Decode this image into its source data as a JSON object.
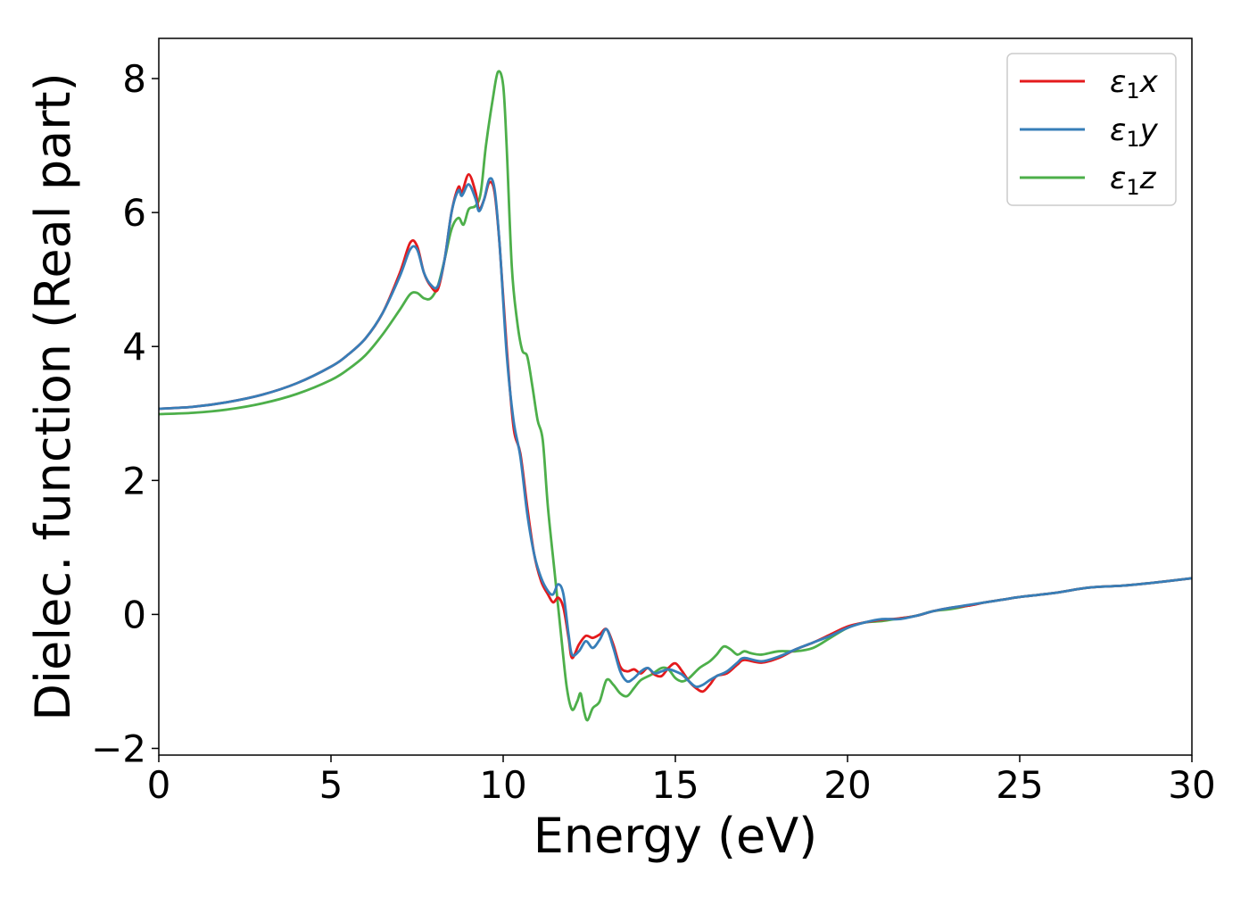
{
  "chart_data": {
    "type": "line",
    "title": "",
    "xlabel": "Energy (eV)",
    "ylabel": "Dielec. function (Real part)",
    "xlim": [
      0,
      30
    ],
    "ylim": [
      -2.1,
      8.6
    ],
    "xticks": [
      0,
      5,
      10,
      15,
      20,
      25,
      30
    ],
    "yticks": [
      -2,
      0,
      2,
      4,
      6,
      8
    ],
    "xtick_labels": [
      "0",
      "5",
      "10",
      "15",
      "20",
      "25",
      "30"
    ],
    "ytick_labels": [
      "−2",
      "0",
      "2",
      "4",
      "6",
      "8"
    ],
    "grid": false,
    "legend_position": "top-right",
    "series": [
      {
        "name": "ε1x",
        "symbol": "ε",
        "subscript": "1",
        "axis": "x",
        "color": "#e41a1c",
        "points": [
          [
            0,
            3.07
          ],
          [
            1,
            3.1
          ],
          [
            2,
            3.17
          ],
          [
            3,
            3.28
          ],
          [
            4,
            3.45
          ],
          [
            5,
            3.7
          ],
          [
            5.5,
            3.88
          ],
          [
            6,
            4.12
          ],
          [
            6.5,
            4.5
          ],
          [
            7,
            5.1
          ],
          [
            7.3,
            5.55
          ],
          [
            7.5,
            5.5
          ],
          [
            7.7,
            5.1
          ],
          [
            7.9,
            4.9
          ],
          [
            8.1,
            4.85
          ],
          [
            8.3,
            5.3
          ],
          [
            8.5,
            6.0
          ],
          [
            8.7,
            6.38
          ],
          [
            8.8,
            6.3
          ],
          [
            9.0,
            6.57
          ],
          [
            9.2,
            6.3
          ],
          [
            9.3,
            6.05
          ],
          [
            9.45,
            6.2
          ],
          [
            9.6,
            6.45
          ],
          [
            9.75,
            6.3
          ],
          [
            9.9,
            5.5
          ],
          [
            10.1,
            4.0
          ],
          [
            10.3,
            2.8
          ],
          [
            10.5,
            2.4
          ],
          [
            10.7,
            1.6
          ],
          [
            10.9,
            0.9
          ],
          [
            11.1,
            0.5
          ],
          [
            11.3,
            0.3
          ],
          [
            11.45,
            0.18
          ],
          [
            11.6,
            0.25
          ],
          [
            11.75,
            0.1
          ],
          [
            11.9,
            -0.35
          ],
          [
            12.0,
            -0.65
          ],
          [
            12.2,
            -0.45
          ],
          [
            12.4,
            -0.32
          ],
          [
            12.6,
            -0.35
          ],
          [
            12.8,
            -0.3
          ],
          [
            13.0,
            -0.22
          ],
          [
            13.2,
            -0.45
          ],
          [
            13.4,
            -0.78
          ],
          [
            13.6,
            -0.85
          ],
          [
            13.8,
            -0.82
          ],
          [
            14.0,
            -0.88
          ],
          [
            14.2,
            -0.8
          ],
          [
            14.4,
            -0.9
          ],
          [
            14.6,
            -0.92
          ],
          [
            14.8,
            -0.8
          ],
          [
            15.0,
            -0.73
          ],
          [
            15.2,
            -0.85
          ],
          [
            15.4,
            -1.0
          ],
          [
            15.6,
            -1.1
          ],
          [
            15.8,
            -1.15
          ],
          [
            16.0,
            -1.05
          ],
          [
            16.2,
            -0.92
          ],
          [
            16.5,
            -0.88
          ],
          [
            16.8,
            -0.75
          ],
          [
            17.0,
            -0.68
          ],
          [
            17.5,
            -0.72
          ],
          [
            18.0,
            -0.65
          ],
          [
            18.5,
            -0.52
          ],
          [
            19.0,
            -0.42
          ],
          [
            19.5,
            -0.3
          ],
          [
            20,
            -0.18
          ],
          [
            20.5,
            -0.12
          ],
          [
            21,
            -0.08
          ],
          [
            21.5,
            -0.06
          ],
          [
            22,
            -0.02
          ],
          [
            22.5,
            0.05
          ],
          [
            23,
            0.1
          ],
          [
            23.5,
            0.13
          ],
          [
            24,
            0.18
          ],
          [
            24.5,
            0.22
          ],
          [
            25,
            0.26
          ],
          [
            26,
            0.32
          ],
          [
            27,
            0.4
          ],
          [
            28,
            0.43
          ],
          [
            29,
            0.48
          ],
          [
            30,
            0.54
          ]
        ]
      },
      {
        "name": "ε1y",
        "symbol": "ε",
        "subscript": "1",
        "axis": "y",
        "color": "#377eb8",
        "points": [
          [
            0,
            3.07
          ],
          [
            1,
            3.1
          ],
          [
            2,
            3.17
          ],
          [
            3,
            3.28
          ],
          [
            4,
            3.45
          ],
          [
            5,
            3.7
          ],
          [
            5.5,
            3.88
          ],
          [
            6,
            4.12
          ],
          [
            6.5,
            4.5
          ],
          [
            7,
            5.05
          ],
          [
            7.3,
            5.45
          ],
          [
            7.5,
            5.45
          ],
          [
            7.7,
            5.1
          ],
          [
            7.9,
            4.92
          ],
          [
            8.1,
            4.9
          ],
          [
            8.3,
            5.3
          ],
          [
            8.5,
            6.0
          ],
          [
            8.7,
            6.33
          ],
          [
            8.8,
            6.25
          ],
          [
            9.0,
            6.42
          ],
          [
            9.2,
            6.2
          ],
          [
            9.3,
            6.02
          ],
          [
            9.45,
            6.2
          ],
          [
            9.6,
            6.5
          ],
          [
            9.75,
            6.35
          ],
          [
            9.9,
            5.5
          ],
          [
            10.1,
            3.9
          ],
          [
            10.3,
            2.9
          ],
          [
            10.5,
            2.35
          ],
          [
            10.7,
            1.5
          ],
          [
            10.9,
            0.9
          ],
          [
            11.1,
            0.55
          ],
          [
            11.3,
            0.35
          ],
          [
            11.45,
            0.3
          ],
          [
            11.6,
            0.45
          ],
          [
            11.75,
            0.3
          ],
          [
            11.9,
            -0.3
          ],
          [
            12.0,
            -0.6
          ],
          [
            12.2,
            -0.55
          ],
          [
            12.4,
            -0.4
          ],
          [
            12.6,
            -0.5
          ],
          [
            12.8,
            -0.38
          ],
          [
            13.0,
            -0.22
          ],
          [
            13.2,
            -0.5
          ],
          [
            13.4,
            -0.85
          ],
          [
            13.6,
            -1.0
          ],
          [
            13.8,
            -0.95
          ],
          [
            14.0,
            -0.85
          ],
          [
            14.2,
            -0.8
          ],
          [
            14.4,
            -0.88
          ],
          [
            14.6,
            -0.85
          ],
          [
            14.8,
            -0.82
          ],
          [
            15.0,
            -0.85
          ],
          [
            15.2,
            -0.9
          ],
          [
            15.4,
            -1.0
          ],
          [
            15.6,
            -1.08
          ],
          [
            15.8,
            -1.05
          ],
          [
            16.0,
            -0.98
          ],
          [
            16.2,
            -0.92
          ],
          [
            16.5,
            -0.85
          ],
          [
            16.8,
            -0.72
          ],
          [
            17.0,
            -0.65
          ],
          [
            17.5,
            -0.7
          ],
          [
            18.0,
            -0.63
          ],
          [
            18.5,
            -0.52
          ],
          [
            19.0,
            -0.42
          ],
          [
            19.5,
            -0.32
          ],
          [
            20,
            -0.2
          ],
          [
            20.5,
            -0.12
          ],
          [
            21,
            -0.07
          ],
          [
            21.5,
            -0.07
          ],
          [
            22,
            -0.02
          ],
          [
            22.5,
            0.05
          ],
          [
            23,
            0.1
          ],
          [
            23.5,
            0.14
          ],
          [
            24,
            0.18
          ],
          [
            24.5,
            0.22
          ],
          [
            25,
            0.26
          ],
          [
            26,
            0.32
          ],
          [
            27,
            0.4
          ],
          [
            28,
            0.43
          ],
          [
            29,
            0.48
          ],
          [
            30,
            0.54
          ]
        ]
      },
      {
        "name": "ε1z",
        "symbol": "ε",
        "subscript": "1",
        "axis": "z",
        "color": "#4daf4a",
        "points": [
          [
            0,
            2.99
          ],
          [
            1,
            3.01
          ],
          [
            2,
            3.06
          ],
          [
            3,
            3.15
          ],
          [
            4,
            3.29
          ],
          [
            5,
            3.5
          ],
          [
            5.5,
            3.66
          ],
          [
            6,
            3.87
          ],
          [
            6.5,
            4.18
          ],
          [
            7,
            4.55
          ],
          [
            7.3,
            4.78
          ],
          [
            7.5,
            4.8
          ],
          [
            7.7,
            4.72
          ],
          [
            7.9,
            4.72
          ],
          [
            8.1,
            4.9
          ],
          [
            8.3,
            5.3
          ],
          [
            8.5,
            5.75
          ],
          [
            8.7,
            5.92
          ],
          [
            8.85,
            5.82
          ],
          [
            9.0,
            6.05
          ],
          [
            9.2,
            6.1
          ],
          [
            9.35,
            6.3
          ],
          [
            9.5,
            7.0
          ],
          [
            9.7,
            7.7
          ],
          [
            9.85,
            8.1
          ],
          [
            10.0,
            7.9
          ],
          [
            10.1,
            7.0
          ],
          [
            10.25,
            5.2
          ],
          [
            10.4,
            4.4
          ],
          [
            10.55,
            3.95
          ],
          [
            10.7,
            3.85
          ],
          [
            10.85,
            3.4
          ],
          [
            11.0,
            2.9
          ],
          [
            11.15,
            2.6
          ],
          [
            11.3,
            1.6
          ],
          [
            11.5,
            0.6
          ],
          [
            11.7,
            -0.4
          ],
          [
            11.85,
            -1.1
          ],
          [
            12.0,
            -1.42
          ],
          [
            12.15,
            -1.3
          ],
          [
            12.25,
            -1.18
          ],
          [
            12.35,
            -1.45
          ],
          [
            12.45,
            -1.58
          ],
          [
            12.6,
            -1.4
          ],
          [
            12.8,
            -1.3
          ],
          [
            13.0,
            -0.98
          ],
          [
            13.2,
            -1.05
          ],
          [
            13.4,
            -1.18
          ],
          [
            13.6,
            -1.22
          ],
          [
            13.8,
            -1.1
          ],
          [
            14.0,
            -0.98
          ],
          [
            14.3,
            -0.9
          ],
          [
            14.6,
            -0.8
          ],
          [
            14.8,
            -0.82
          ],
          [
            15.0,
            -0.95
          ],
          [
            15.2,
            -1.0
          ],
          [
            15.4,
            -0.95
          ],
          [
            15.7,
            -0.8
          ],
          [
            16.0,
            -0.7
          ],
          [
            16.2,
            -0.6
          ],
          [
            16.4,
            -0.48
          ],
          [
            16.6,
            -0.52
          ],
          [
            16.8,
            -0.6
          ],
          [
            17.0,
            -0.55
          ],
          [
            17.2,
            -0.58
          ],
          [
            17.5,
            -0.6
          ],
          [
            18.0,
            -0.55
          ],
          [
            18.5,
            -0.55
          ],
          [
            19.0,
            -0.5
          ],
          [
            19.5,
            -0.35
          ],
          [
            20,
            -0.2
          ],
          [
            20.5,
            -0.12
          ],
          [
            21,
            -0.1
          ],
          [
            21.5,
            -0.06
          ],
          [
            22,
            -0.02
          ],
          [
            22.5,
            0.05
          ],
          [
            23,
            0.08
          ],
          [
            23.5,
            0.13
          ],
          [
            24,
            0.18
          ],
          [
            24.5,
            0.22
          ],
          [
            25,
            0.26
          ],
          [
            26,
            0.32
          ],
          [
            27,
            0.4
          ],
          [
            28,
            0.43
          ],
          [
            29,
            0.48
          ],
          [
            30,
            0.54
          ]
        ]
      }
    ]
  }
}
